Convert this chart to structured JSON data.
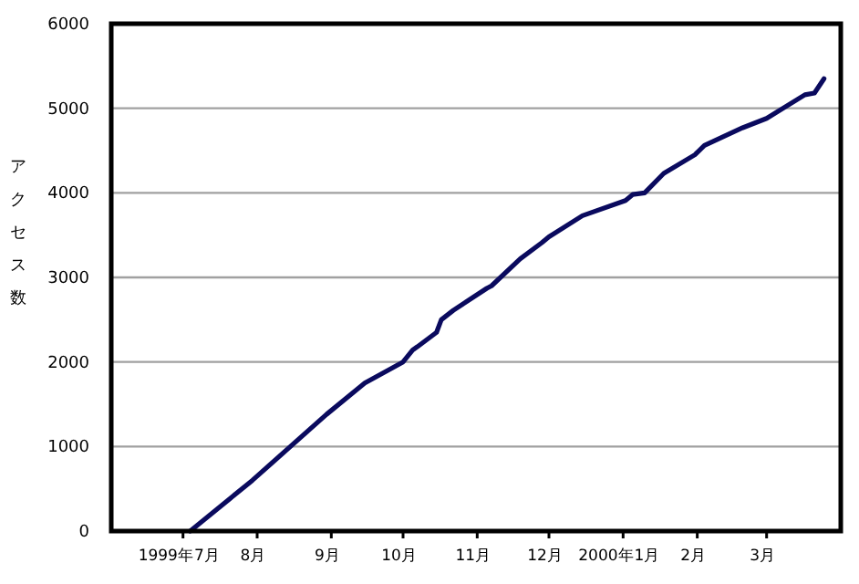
{
  "chart_data": {
    "type": "line",
    "ylabel": "アクセス数",
    "x": [
      "1999-07-04",
      "1999-07-30",
      "1999-08-30",
      "1999-09-15",
      "1999-10-01",
      "1999-10-05",
      "1999-10-07",
      "1999-10-15",
      "1999-10-17",
      "1999-10-22",
      "1999-11-05",
      "1999-11-07",
      "1999-11-19",
      "1999-11-28",
      "1999-12-01",
      "1999-12-15",
      "2000-01-02",
      "2000-01-05",
      "2000-01-10",
      "2000-01-18",
      "2000-01-31",
      "2000-02-04",
      "2000-02-20",
      "2000-03-01",
      "2000-03-17",
      "2000-03-21",
      "2000-03-25"
    ],
    "values": [
      0,
      600,
      1380,
      1750,
      2000,
      2140,
      2180,
      2350,
      2500,
      2610,
      2870,
      2900,
      3220,
      3410,
      3480,
      3730,
      3910,
      3980,
      4000,
      4230,
      4450,
      4560,
      4770,
      4880,
      5160,
      5180,
      5350
    ],
    "color": "#0a0a5e",
    "xlim": [
      "1999-06-01",
      "2000-04-01"
    ],
    "ylim": [
      0,
      6000
    ],
    "xticks": [
      {
        "value": "1999-07",
        "label": "1999年7月"
      },
      {
        "value": "1999-08",
        "label": "8月"
      },
      {
        "value": "1999-09",
        "label": "9月"
      },
      {
        "value": "1999-10",
        "label": "10月"
      },
      {
        "value": "1999-11",
        "label": "11月"
      },
      {
        "value": "1999-12",
        "label": "12月"
      },
      {
        "value": "2000-01",
        "label": "2000年1月"
      },
      {
        "value": "2000-02",
        "label": "2月"
      },
      {
        "value": "2000-03",
        "label": "3月"
      }
    ],
    "yticks": [
      0,
      1000,
      2000,
      3000,
      4000,
      5000,
      6000
    ],
    "grid": "y"
  }
}
